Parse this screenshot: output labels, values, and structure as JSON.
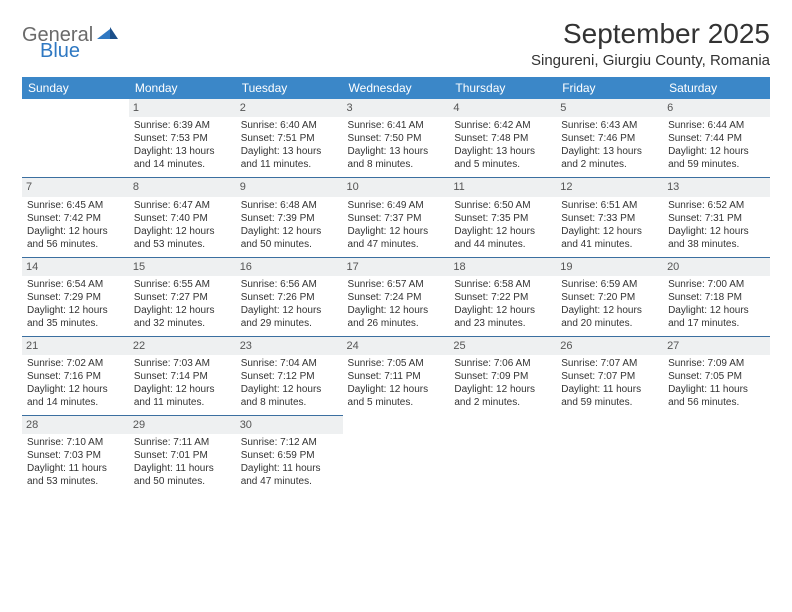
{
  "logo": {
    "word1": "General",
    "word2": "Blue"
  },
  "title": "September 2025",
  "location": "Singureni, Giurgiu County, Romania",
  "colors": {
    "header_bg": "#3b87c8",
    "header_text": "#ffffff",
    "daynum_bg": "#eef0f1",
    "row_border": "#3b6fa0",
    "logo_gray": "#6a6a6a",
    "logo_blue": "#2f78c2",
    "body_text": "#333333",
    "page_bg": "#ffffff"
  },
  "dayNames": [
    "Sunday",
    "Monday",
    "Tuesday",
    "Wednesday",
    "Thursday",
    "Friday",
    "Saturday"
  ],
  "weeks": [
    [
      null,
      {
        "n": "1",
        "sr": "Sunrise: 6:39 AM",
        "ss": "Sunset: 7:53 PM",
        "d1": "Daylight: 13 hours",
        "d2": "and 14 minutes."
      },
      {
        "n": "2",
        "sr": "Sunrise: 6:40 AM",
        "ss": "Sunset: 7:51 PM",
        "d1": "Daylight: 13 hours",
        "d2": "and 11 minutes."
      },
      {
        "n": "3",
        "sr": "Sunrise: 6:41 AM",
        "ss": "Sunset: 7:50 PM",
        "d1": "Daylight: 13 hours",
        "d2": "and 8 minutes."
      },
      {
        "n": "4",
        "sr": "Sunrise: 6:42 AM",
        "ss": "Sunset: 7:48 PM",
        "d1": "Daylight: 13 hours",
        "d2": "and 5 minutes."
      },
      {
        "n": "5",
        "sr": "Sunrise: 6:43 AM",
        "ss": "Sunset: 7:46 PM",
        "d1": "Daylight: 13 hours",
        "d2": "and 2 minutes."
      },
      {
        "n": "6",
        "sr": "Sunrise: 6:44 AM",
        "ss": "Sunset: 7:44 PM",
        "d1": "Daylight: 12 hours",
        "d2": "and 59 minutes."
      }
    ],
    [
      {
        "n": "7",
        "sr": "Sunrise: 6:45 AM",
        "ss": "Sunset: 7:42 PM",
        "d1": "Daylight: 12 hours",
        "d2": "and 56 minutes."
      },
      {
        "n": "8",
        "sr": "Sunrise: 6:47 AM",
        "ss": "Sunset: 7:40 PM",
        "d1": "Daylight: 12 hours",
        "d2": "and 53 minutes."
      },
      {
        "n": "9",
        "sr": "Sunrise: 6:48 AM",
        "ss": "Sunset: 7:39 PM",
        "d1": "Daylight: 12 hours",
        "d2": "and 50 minutes."
      },
      {
        "n": "10",
        "sr": "Sunrise: 6:49 AM",
        "ss": "Sunset: 7:37 PM",
        "d1": "Daylight: 12 hours",
        "d2": "and 47 minutes."
      },
      {
        "n": "11",
        "sr": "Sunrise: 6:50 AM",
        "ss": "Sunset: 7:35 PM",
        "d1": "Daylight: 12 hours",
        "d2": "and 44 minutes."
      },
      {
        "n": "12",
        "sr": "Sunrise: 6:51 AM",
        "ss": "Sunset: 7:33 PM",
        "d1": "Daylight: 12 hours",
        "d2": "and 41 minutes."
      },
      {
        "n": "13",
        "sr": "Sunrise: 6:52 AM",
        "ss": "Sunset: 7:31 PM",
        "d1": "Daylight: 12 hours",
        "d2": "and 38 minutes."
      }
    ],
    [
      {
        "n": "14",
        "sr": "Sunrise: 6:54 AM",
        "ss": "Sunset: 7:29 PM",
        "d1": "Daylight: 12 hours",
        "d2": "and 35 minutes."
      },
      {
        "n": "15",
        "sr": "Sunrise: 6:55 AM",
        "ss": "Sunset: 7:27 PM",
        "d1": "Daylight: 12 hours",
        "d2": "and 32 minutes."
      },
      {
        "n": "16",
        "sr": "Sunrise: 6:56 AM",
        "ss": "Sunset: 7:26 PM",
        "d1": "Daylight: 12 hours",
        "d2": "and 29 minutes."
      },
      {
        "n": "17",
        "sr": "Sunrise: 6:57 AM",
        "ss": "Sunset: 7:24 PM",
        "d1": "Daylight: 12 hours",
        "d2": "and 26 minutes."
      },
      {
        "n": "18",
        "sr": "Sunrise: 6:58 AM",
        "ss": "Sunset: 7:22 PM",
        "d1": "Daylight: 12 hours",
        "d2": "and 23 minutes."
      },
      {
        "n": "19",
        "sr": "Sunrise: 6:59 AM",
        "ss": "Sunset: 7:20 PM",
        "d1": "Daylight: 12 hours",
        "d2": "and 20 minutes."
      },
      {
        "n": "20",
        "sr": "Sunrise: 7:00 AM",
        "ss": "Sunset: 7:18 PM",
        "d1": "Daylight: 12 hours",
        "d2": "and 17 minutes."
      }
    ],
    [
      {
        "n": "21",
        "sr": "Sunrise: 7:02 AM",
        "ss": "Sunset: 7:16 PM",
        "d1": "Daylight: 12 hours",
        "d2": "and 14 minutes."
      },
      {
        "n": "22",
        "sr": "Sunrise: 7:03 AM",
        "ss": "Sunset: 7:14 PM",
        "d1": "Daylight: 12 hours",
        "d2": "and 11 minutes."
      },
      {
        "n": "23",
        "sr": "Sunrise: 7:04 AM",
        "ss": "Sunset: 7:12 PM",
        "d1": "Daylight: 12 hours",
        "d2": "and 8 minutes."
      },
      {
        "n": "24",
        "sr": "Sunrise: 7:05 AM",
        "ss": "Sunset: 7:11 PM",
        "d1": "Daylight: 12 hours",
        "d2": "and 5 minutes."
      },
      {
        "n": "25",
        "sr": "Sunrise: 7:06 AM",
        "ss": "Sunset: 7:09 PM",
        "d1": "Daylight: 12 hours",
        "d2": "and 2 minutes."
      },
      {
        "n": "26",
        "sr": "Sunrise: 7:07 AM",
        "ss": "Sunset: 7:07 PM",
        "d1": "Daylight: 11 hours",
        "d2": "and 59 minutes."
      },
      {
        "n": "27",
        "sr": "Sunrise: 7:09 AM",
        "ss": "Sunset: 7:05 PM",
        "d1": "Daylight: 11 hours",
        "d2": "and 56 minutes."
      }
    ],
    [
      {
        "n": "28",
        "sr": "Sunrise: 7:10 AM",
        "ss": "Sunset: 7:03 PM",
        "d1": "Daylight: 11 hours",
        "d2": "and 53 minutes."
      },
      {
        "n": "29",
        "sr": "Sunrise: 7:11 AM",
        "ss": "Sunset: 7:01 PM",
        "d1": "Daylight: 11 hours",
        "d2": "and 50 minutes."
      },
      {
        "n": "30",
        "sr": "Sunrise: 7:12 AM",
        "ss": "Sunset: 6:59 PM",
        "d1": "Daylight: 11 hours",
        "d2": "and 47 minutes."
      },
      null,
      null,
      null,
      null
    ]
  ]
}
